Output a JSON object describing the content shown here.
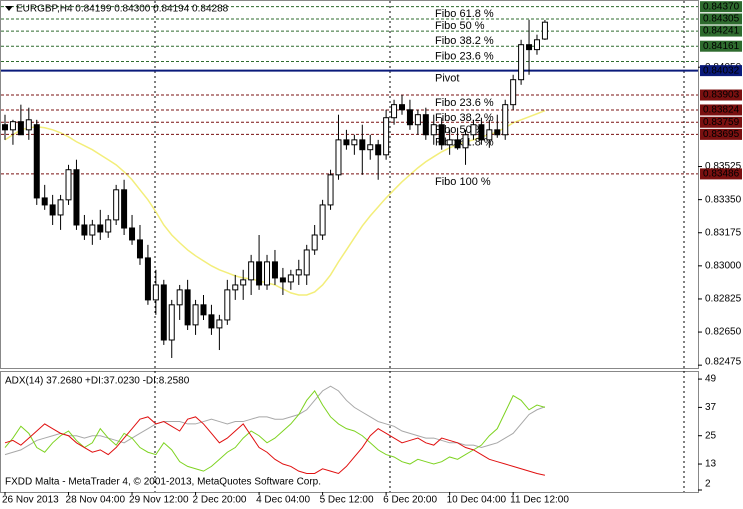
{
  "chart_data": [
    {
      "type": "candlestick",
      "title": "EURGBP,H4 0.84199 0.84300 0.84194 0.84288",
      "categories": [
        "26 Nov 2013",
        null,
        null,
        null,
        null,
        null,
        null,
        null,
        "28 Nov 04:00",
        null,
        null,
        null,
        null,
        null,
        null,
        null,
        "29 Nov 12:00",
        null,
        null,
        null,
        null,
        null,
        null,
        null,
        "2 Dec 20:00",
        null,
        null,
        null,
        null,
        null,
        null,
        null,
        "4 Dec 04:00",
        null,
        null,
        null,
        null,
        null,
        null,
        null,
        "5 Dec 12:00",
        null,
        null,
        null,
        null,
        null,
        null,
        null,
        "6 Dec 20:00",
        null,
        null,
        null,
        null,
        null,
        null,
        null,
        "10 Dec 04:00",
        null,
        null,
        null,
        null,
        null,
        null,
        null,
        "11 Dec 12:00",
        null,
        null,
        null,
        null
      ],
      "open": [
        0.83746,
        0.83719,
        0.83762,
        0.83719,
        0.83746,
        0.83359,
        0.83322,
        0.83269,
        0.83349,
        0.83508,
        0.83216,
        0.83163,
        0.83216,
        0.83179,
        0.83243,
        0.83402,
        0.832,
        0.83137,
        0.83042,
        0.8282,
        0.82899,
        0.82608,
        0.82794,
        0.82873,
        0.82688,
        0.82794,
        0.82741,
        0.82672,
        0.82714,
        0.82873,
        0.82899,
        0.82926,
        0.83021,
        0.82899,
        0.83021,
        0.82936,
        0.82915,
        0.82952,
        0.82952,
        0.83084,
        0.83163,
        0.83322,
        0.83481,
        0.83666,
        0.8364,
        0.83666,
        0.83614,
        0.8364,
        0.83587,
        0.83783,
        0.83852,
        0.83825,
        0.83746,
        0.83799,
        0.83693,
        0.83746,
        0.8364,
        0.83666,
        0.83624,
        0.83693,
        0.83746,
        0.83666,
        0.83719,
        0.83693,
        0.83852,
        0.83984,
        0.84169,
        0.84143,
        0.84199
      ],
      "high": [
        0.83799,
        0.83772,
        0.83852,
        0.83836,
        0.83772,
        0.83428,
        0.83375,
        0.83375,
        0.83534,
        0.83561,
        0.83269,
        0.83243,
        0.83296,
        0.83269,
        0.83428,
        0.83455,
        0.83269,
        0.83216,
        0.83111,
        0.82979,
        0.82926,
        0.8282,
        0.82899,
        0.82926,
        0.8282,
        0.82846,
        0.82794,
        0.82741,
        0.82926,
        0.82952,
        0.82979,
        0.83058,
        0.83163,
        0.83058,
        0.83084,
        0.82989,
        0.82979,
        0.83032,
        0.83111,
        0.83216,
        0.83349,
        0.83508,
        0.83799,
        0.83719,
        0.83693,
        0.83746,
        0.83693,
        0.83666,
        0.83825,
        0.83878,
        0.83904,
        0.83878,
        0.83825,
        0.83836,
        0.83799,
        0.83783,
        0.83719,
        0.8373,
        0.83719,
        0.83772,
        0.83783,
        0.83772,
        0.83799,
        0.83878,
        0.8401,
        0.84195,
        0.84301,
        0.84222,
        0.843
      ],
      "low": [
        0.83666,
        0.8364,
        0.83693,
        0.83666,
        0.83322,
        0.83296,
        0.83216,
        0.8319,
        0.83322,
        0.8319,
        0.83137,
        0.83111,
        0.83137,
        0.83148,
        0.83216,
        0.83163,
        0.83111,
        0.83005,
        0.82794,
        0.82741,
        0.82582,
        0.82513,
        0.82714,
        0.82661,
        0.82635,
        0.82714,
        0.82635,
        0.82555,
        0.82688,
        0.8282,
        0.8282,
        0.82846,
        0.82873,
        0.82873,
        0.82899,
        0.82846,
        0.82873,
        0.82899,
        0.82899,
        0.83058,
        0.83137,
        0.83296,
        0.83455,
        0.83614,
        0.83587,
        0.83481,
        0.83561,
        0.83455,
        0.83561,
        0.83746,
        0.83799,
        0.83719,
        0.83693,
        0.83666,
        0.8364,
        0.83614,
        0.83587,
        0.83614,
        0.83534,
        0.83666,
        0.8364,
        0.83624,
        0.83677,
        0.83666,
        0.83825,
        0.83957,
        0.8401,
        0.84116,
        0.84194
      ],
      "close": [
        0.83719,
        0.83762,
        0.83693,
        0.83772,
        0.83359,
        0.83322,
        0.83269,
        0.83349,
        0.83508,
        0.83216,
        0.83163,
        0.83216,
        0.83179,
        0.83243,
        0.83402,
        0.832,
        0.83137,
        0.83042,
        0.8282,
        0.82899,
        0.82608,
        0.82794,
        0.82873,
        0.82688,
        0.82794,
        0.82741,
        0.82672,
        0.82714,
        0.82873,
        0.82899,
        0.82926,
        0.83021,
        0.82899,
        0.83021,
        0.82936,
        0.82915,
        0.82952,
        0.82979,
        0.83084,
        0.83163,
        0.83322,
        0.83481,
        0.83666,
        0.8364,
        0.83666,
        0.83614,
        0.8364,
        0.83587,
        0.83783,
        0.83852,
        0.83825,
        0.83746,
        0.83799,
        0.83693,
        0.83746,
        0.8364,
        0.83666,
        0.83624,
        0.83693,
        0.83746,
        0.83666,
        0.83719,
        0.83693,
        0.83852,
        0.83984,
        0.84169,
        0.84143,
        0.84195,
        0.84288
      ],
      "up_color": "#ffffff",
      "down_color": "#000000",
      "ma": {
        "color": "#f3ee7a",
        "values": [
          0.83666,
          0.83693,
          0.83719,
          0.8373,
          0.83735,
          0.8373,
          0.83719,
          0.83703,
          0.83682,
          0.83656,
          0.83635,
          0.83614,
          0.83587,
          0.83561,
          0.83534,
          0.83497,
          0.83455,
          0.83402,
          0.83349,
          0.83286,
          0.83216,
          0.83163,
          0.83122,
          0.83084,
          0.83053,
          0.83026,
          0.83,
          0.82979,
          0.82963,
          0.82947,
          0.82936,
          0.82931,
          0.8292,
          0.8291,
          0.82899,
          0.82878,
          0.82857,
          0.82846,
          0.82846,
          0.82862,
          0.82899,
          0.82952,
          0.83021,
          0.83084,
          0.83148,
          0.83211,
          0.83264,
          0.83312,
          0.83359,
          0.83402,
          0.83444,
          0.83481,
          0.83518,
          0.8355,
          0.83577,
          0.83603,
          0.83624,
          0.8364,
          0.83656,
          0.83666,
          0.83682,
          0.83693,
          0.83709,
          0.8373,
          0.83756,
          0.83772,
          0.83788,
          0.83804,
          0.8382
        ]
      },
      "ylim": [
        0.8246,
        0.844
      ],
      "yticks": [
        0.82475,
        {
          "value": 0.8265,
          "label": "0.82650"
        },
        0.82825,
        {
          "value": 0.83,
          "label": "0.83000"
        },
        0.83175,
        {
          "value": 0.8335,
          "label": "0.83350"
        },
        0.83525,
        {
          "value": 0.8405,
          "label": "0.84050"
        }
      ],
      "levels": [
        {
          "value": 0.8437,
          "value_label": "0.84370",
          "color": "#2e6b2e",
          "style": "dashed",
          "tag": true
        },
        {
          "value": 0.84305,
          "label": "Fibo 61.8 %",
          "color": "#2e6b2e",
          "style": "dashed",
          "label_side": "above",
          "tag": true
        },
        {
          "value": 0.84241,
          "label": "Fibo 50 %",
          "color": "#2e6b2e",
          "style": "dashed",
          "label_side": "above",
          "tag": true
        },
        {
          "value": 0.84161,
          "label": "Fibo 38.2 %",
          "color": "#2e6b2e",
          "style": "dashed",
          "label_side": "above",
          "tag": true
        },
        {
          "value": 0.8408,
          "label": "Fibo 23.6 %",
          "color": "#2e6b2e",
          "style": "dashed",
          "label_side": "above",
          "tag": false
        },
        {
          "value": 0.84032,
          "label": "Pivot",
          "color": "#0a1a7a",
          "style": "solid",
          "label_side": "below",
          "tag": true
        },
        {
          "value": 0.83903,
          "label": "Fibo 23.6 %",
          "color": "#7a1010",
          "style": "dashed",
          "label_side": "below",
          "tag": true
        },
        {
          "value": 0.83824,
          "label": "Fibo 38.2 %",
          "color": "#7a1010",
          "style": "dashed",
          "label_side": "below",
          "tag": true
        },
        {
          "value": 0.83759,
          "label": "Fibo 50 %",
          "color": "#7a1010",
          "style": "dashed",
          "label_side": "below",
          "tag": true
        },
        {
          "value": 0.83695,
          "label": "Fibo 61.8 %",
          "color": "#7a1010",
          "style": "dashed",
          "label_side": "below",
          "tag": true
        },
        {
          "value": 0.83486,
          "label": "Fibo 100 %",
          "color": "#7a1010",
          "style": "dashed",
          "label_side": "below",
          "tag": true
        }
      ]
    },
    {
      "type": "line",
      "title": "ADX(14) 37.2680 +DI:37.0230 -DI:8.2580",
      "series": [
        {
          "color": "#a8a8a8",
          "values": [
            17,
            18,
            19,
            21,
            23,
            24,
            25,
            26,
            25,
            25,
            24,
            25,
            25,
            24,
            23,
            22,
            24,
            26,
            28,
            30,
            31,
            31,
            31,
            30,
            30,
            31,
            32,
            31,
            30,
            31,
            31,
            32,
            33,
            33,
            32,
            32,
            33,
            34,
            36,
            40,
            44,
            46,
            44,
            40,
            37,
            35,
            33,
            31,
            30,
            29,
            27,
            26,
            25,
            24,
            24,
            23,
            22,
            22,
            21,
            21,
            20,
            21,
            22,
            24,
            26,
            30,
            34,
            36,
            37.268
          ]
        },
        {
          "color": "#7ed321",
          "values": [
            20,
            24,
            29,
            26,
            20,
            18,
            22,
            25,
            27,
            23,
            20,
            22,
            28,
            24,
            21,
            26,
            24,
            20,
            18,
            17,
            22,
            19,
            14,
            12,
            11,
            10,
            12,
            15,
            18,
            20,
            24,
            27,
            25,
            22,
            24,
            27,
            30,
            34,
            40,
            44,
            38,
            33,
            30,
            28,
            27,
            25,
            22,
            19,
            17,
            16,
            14,
            13,
            15,
            14,
            13,
            14,
            16,
            15,
            17,
            19,
            21,
            25,
            28,
            35,
            42,
            40,
            36,
            38,
            37.023
          ]
        },
        {
          "color": "#e01010",
          "values": [
            22,
            23,
            21,
            24,
            27,
            30,
            28,
            26,
            25,
            22,
            20,
            18,
            19,
            17,
            20,
            24,
            28,
            32,
            33,
            30,
            31,
            29,
            27,
            32,
            33,
            30,
            26,
            22,
            24,
            27,
            30,
            25,
            20,
            18,
            15,
            13,
            12,
            10,
            9,
            9,
            11,
            10,
            9,
            12,
            16,
            20,
            25,
            28,
            26,
            24,
            22,
            23,
            24,
            22,
            21,
            24,
            23,
            22,
            20,
            19,
            17,
            15,
            14,
            13,
            12,
            11,
            10,
            9,
            8.258
          ]
        }
      ],
      "ylim": [
        2,
        52
      ],
      "yticks": [
        49,
        37,
        25,
        13,
        2
      ],
      "footer": "FXDD Malta - MetaTrader 4, © 2001-2013, MetaQuotes Software Corp."
    }
  ]
}
